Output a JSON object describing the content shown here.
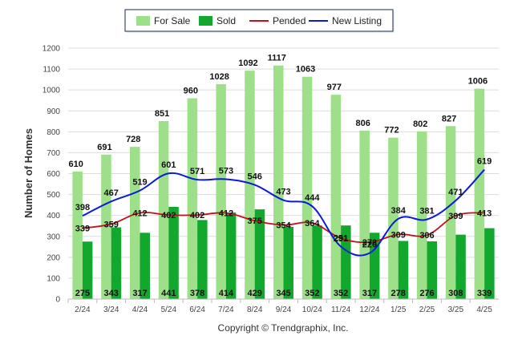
{
  "chart_data": {
    "type": "bar",
    "categories": [
      "2/24",
      "3/24",
      "4/24",
      "5/24",
      "6/24",
      "7/24",
      "8/24",
      "9/24",
      "10/24",
      "11/24",
      "12/24",
      "1/25",
      "2/25",
      "3/25",
      "4/25"
    ],
    "ylabel": "Number of Homes",
    "ylim": [
      0,
      1200
    ],
    "yticks": [
      0,
      100,
      200,
      300,
      400,
      500,
      600,
      700,
      800,
      900,
      1000,
      1100,
      1200
    ],
    "grid": true,
    "legend_position": "top-center",
    "series": [
      {
        "name": "For Sale",
        "type": "bar",
        "color": "#9ee08a",
        "values": [
          610,
          691,
          728,
          851,
          960,
          1028,
          1092,
          1117,
          1063,
          977,
          806,
          772,
          802,
          827,
          1006
        ]
      },
      {
        "name": "Sold",
        "type": "bar",
        "color": "#12a82e",
        "values": [
          275,
          343,
          317,
          441,
          378,
          414,
          429,
          345,
          352,
          352,
          317,
          278,
          276,
          308,
          339
        ]
      },
      {
        "name": "Pended",
        "type": "line",
        "color": "#c0121a",
        "values": [
          339,
          359,
          412,
          402,
          402,
          412,
          375,
          354,
          364,
          291,
          272,
          309,
          306,
          399,
          413
        ]
      },
      {
        "name": "New Listing",
        "type": "line",
        "color": "#0a1adb",
        "values": [
          398,
          467,
          519,
          601,
          571,
          573,
          546,
          473,
          444,
          251,
          220,
          384,
          381,
          471,
          619
        ]
      }
    ],
    "footer": "Copyright © Trendgraphix, Inc."
  }
}
